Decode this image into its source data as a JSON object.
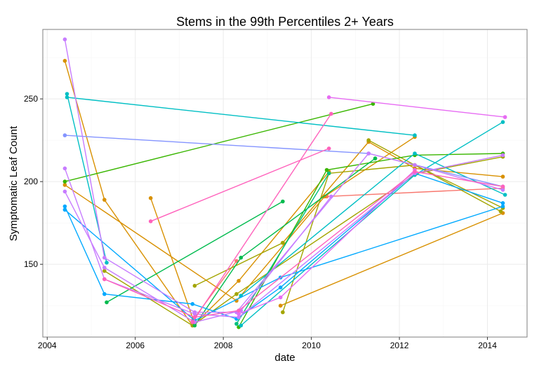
{
  "chart_data": {
    "type": "line",
    "title": "Stems in the 99th Percentiles 2+ Years",
    "xlabel": "date",
    "ylabel": "Symptomatic Leaf Count",
    "xlim": [
      2003.9,
      2014.9
    ],
    "ylim": [
      106,
      292
    ],
    "x_ticks": [
      2004,
      2006,
      2008,
      2010,
      2012,
      2014
    ],
    "x_tick_labels": [
      "2004",
      "2006",
      "2008",
      "2010",
      "2012",
      "2014"
    ],
    "y_ticks": [
      150,
      200,
      250
    ],
    "y_tick_labels": [
      "150",
      "200",
      "250"
    ],
    "grid": true,
    "legend": "none",
    "series": [
      {
        "color": "#F8766D",
        "points": [
          [
            2007.3,
            116
          ],
          [
            2008.3,
            152
          ]
        ]
      },
      {
        "color": "#F8766D",
        "points": [
          [
            2010.35,
            191
          ],
          [
            2014.35,
            196
          ]
        ]
      },
      {
        "color": "#D89000",
        "points": [
          [
            2004.4,
            273
          ],
          [
            2005.3,
            189
          ],
          [
            2007.3,
            113
          ]
        ]
      },
      {
        "color": "#D89000",
        "points": [
          [
            2006.35,
            190
          ],
          [
            2007.35,
            114
          ],
          [
            2008.35,
            140
          ],
          [
            2010.4,
            206
          ]
        ]
      },
      {
        "color": "#D89000",
        "points": [
          [
            2009.35,
            163
          ],
          [
            2011.3,
            224
          ],
          [
            2012.35,
            208
          ],
          [
            2014.35,
            203
          ]
        ]
      },
      {
        "color": "#D89000",
        "points": [
          [
            2009.3,
            125
          ],
          [
            2014.35,
            181
          ]
        ]
      },
      {
        "color": "#D89000",
        "points": [
          [
            2004.4,
            198
          ],
          [
            2008.3,
            128
          ],
          [
            2010.3,
            191
          ],
          [
            2012.35,
            227
          ]
        ]
      },
      {
        "color": "#A3A500",
        "points": [
          [
            2007.35,
            137
          ],
          [
            2009.35,
            163
          ]
        ]
      },
      {
        "color": "#A3A500",
        "points": [
          [
            2011.3,
            225
          ],
          [
            2014.3,
            182
          ]
        ]
      },
      {
        "color": "#A3A500",
        "points": [
          [
            2009.35,
            121
          ],
          [
            2010.4,
            205
          ],
          [
            2012.35,
            210
          ],
          [
            2014.35,
            184
          ]
        ]
      },
      {
        "color": "#A3A500",
        "points": [
          [
            2005.3,
            146
          ],
          [
            2007.3,
            113
          ],
          [
            2008.3,
            132
          ],
          [
            2012.4,
            205
          ],
          [
            2014.35,
            215
          ]
        ]
      },
      {
        "color": "#39B600",
        "points": [
          [
            2004.4,
            200
          ],
          [
            2011.4,
            247
          ]
        ]
      },
      {
        "color": "#39B600",
        "points": [
          [
            2008.35,
            112
          ],
          [
            2010.35,
            207
          ],
          [
            2012.35,
            216
          ],
          [
            2014.35,
            217
          ]
        ]
      },
      {
        "color": "#00BB4E",
        "points": [
          [
            2005.35,
            127
          ],
          [
            2009.35,
            188
          ]
        ]
      },
      {
        "color": "#00BB4E",
        "points": [
          [
            2007.35,
            113
          ],
          [
            2008.4,
            154
          ],
          [
            2011.45,
            214
          ]
        ]
      },
      {
        "color": "#00BF7D",
        "points": [
          [
            2008.3,
            114
          ],
          [
            2010.4,
            205
          ]
        ]
      },
      {
        "color": "#00BFC4",
        "points": [
          [
            2004.45,
            251
          ],
          [
            2012.35,
            228
          ]
        ]
      },
      {
        "color": "#00BFC4",
        "points": [
          [
            2004.45,
            253
          ],
          [
            2005.35,
            151
          ]
        ]
      },
      {
        "color": "#00BFC4",
        "points": [
          [
            2008.4,
            113
          ],
          [
            2012.35,
            204
          ],
          [
            2014.35,
            236
          ]
        ]
      },
      {
        "color": "#00BFC4",
        "points": [
          [
            2008.4,
            131
          ],
          [
            2012.35,
            217
          ],
          [
            2014.4,
            192
          ]
        ]
      },
      {
        "color": "#00A9FF",
        "points": [
          [
            2004.4,
            185
          ],
          [
            2005.3,
            132
          ],
          [
            2007.3,
            126
          ],
          [
            2008.3,
            117
          ],
          [
            2009.3,
            136
          ],
          [
            2012.35,
            205
          ],
          [
            2014.35,
            187
          ]
        ]
      },
      {
        "color": "#00A9FF",
        "points": [
          [
            2004.4,
            183
          ],
          [
            2007.35,
            116
          ],
          [
            2009.3,
            142
          ],
          [
            2014.35,
            185
          ]
        ]
      },
      {
        "color": "#8494FF",
        "points": [
          [
            2004.4,
            228
          ],
          [
            2011.3,
            217
          ],
          [
            2014.35,
            197
          ]
        ]
      },
      {
        "color": "#C77CFF",
        "points": [
          [
            2004.4,
            286
          ],
          [
            2005.3,
            154
          ],
          [
            2007.35,
            121
          ],
          [
            2008.3,
            121
          ],
          [
            2011.3,
            217
          ],
          [
            2012.35,
            210
          ],
          [
            2014.35,
            195
          ]
        ]
      },
      {
        "color": "#C77CFF",
        "points": [
          [
            2004.4,
            208
          ],
          [
            2005.3,
            141
          ],
          [
            2007.35,
            120
          ],
          [
            2008.35,
            118
          ],
          [
            2012.35,
            205
          ],
          [
            2014.35,
            216
          ]
        ]
      },
      {
        "color": "#C77CFF",
        "points": [
          [
            2004.4,
            194
          ],
          [
            2005.3,
            148
          ],
          [
            2007.35,
            115
          ],
          [
            2008.4,
            122
          ],
          [
            2010.45,
            191
          ]
        ]
      },
      {
        "color": "#E76BF3",
        "points": [
          [
            2010.4,
            251
          ],
          [
            2014.4,
            239
          ]
        ]
      },
      {
        "color": "#E76BF3",
        "points": [
          [
            2008.35,
            120
          ],
          [
            2009.3,
            130
          ],
          [
            2012.35,
            207
          ]
        ]
      },
      {
        "color": "#FF62BC",
        "points": [
          [
            2006.35,
            176
          ],
          [
            2010.4,
            220
          ]
        ]
      },
      {
        "color": "#FF62BC",
        "points": [
          [
            2007.3,
            115
          ],
          [
            2010.45,
            241
          ]
        ]
      },
      {
        "color": "#FF62BC",
        "points": [
          [
            2005.3,
            141
          ],
          [
            2007.35,
            118
          ],
          [
            2008.35,
            122
          ],
          [
            2012.35,
            206
          ],
          [
            2014.35,
            197
          ]
        ]
      }
    ]
  }
}
